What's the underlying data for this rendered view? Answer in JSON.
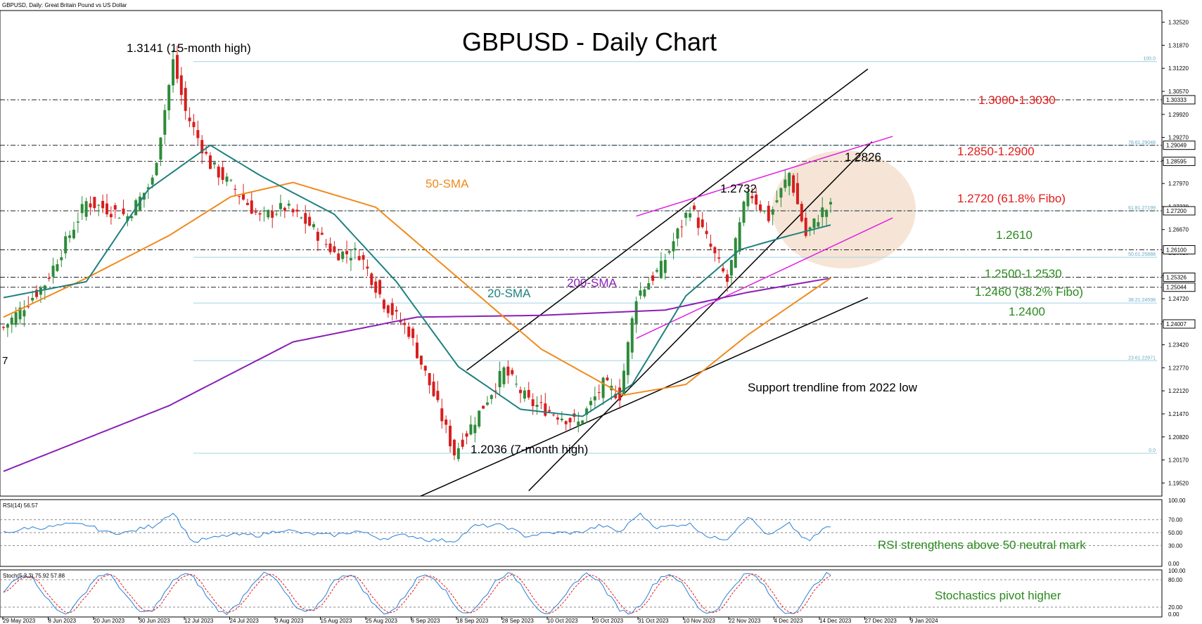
{
  "header": {
    "symbol_line": "GBPUSD, Daily:  Great Britain Pound vs US Dollar",
    "title": "GBPUSD - Daily Chart",
    "left_edge_label": "7"
  },
  "colors": {
    "bull": "#2e8b3a",
    "bear": "#d81e1e",
    "sma20": "#1f8080",
    "sma50": "#f08a1c",
    "sma200": "#8a1fb5",
    "channel": "#000000",
    "wedge": "#e020e0",
    "fib": "#9fd3e6",
    "red_text": "#e31b1b",
    "green_text": "#2a8a1e",
    "highlight": "#f3dcc8"
  },
  "annotations": {
    "high_label": "1.3141 (15-month high)",
    "low_label": "1.2036 (7-month high)",
    "p_1_2732": "1.2732",
    "p_1_2826": "1.2826",
    "sma50_label": "50-SMA",
    "sma20_label": "20-SMA",
    "sma200_label": "200-SMA",
    "trendline_label": "Support trendline from 2022 low",
    "r1": "1.3000-1.3030",
    "r2": "1.2850-1.2900",
    "r3": "1.2720 (61.8% Fibo)",
    "s1": "1.2610",
    "s2": "1.2500-1.2530",
    "s3": "1.2460 (38.2% Fibo)",
    "s4": "1.2400",
    "rsi_note": "RSI strengthens above 50 neutral mark",
    "stoch_note": "Stochastics pivot higher"
  },
  "fib_levels": [
    {
      "label": "100.0",
      "price": 1.3141
    },
    {
      "label": "78.61.29048",
      "price": 1.29048
    },
    {
      "label": "61.81.27199",
      "price": 1.27199
    },
    {
      "label": "50.01.25888",
      "price": 1.25888
    },
    {
      "label": "38.21.24598",
      "price": 1.24598
    },
    {
      "label": "23.61.22971",
      "price": 1.22971
    },
    {
      "label": "0.0",
      "price": 1.2036
    }
  ],
  "price_axis": {
    "ticks": [
      "1.32520",
      "1.31870",
      "1.31220",
      "1.30570",
      "1.29920",
      "1.29270",
      "1.28620",
      "1.27970",
      "1.27320",
      "1.26670",
      "1.26020",
      "1.25370",
      "1.24720",
      "1.24070",
      "1.23420",
      "1.22770",
      "1.22120",
      "1.21470",
      "1.20820",
      "1.20170",
      "1.19520"
    ],
    "boxed": [
      "1.30333",
      "1.29049",
      "1.28595",
      "1.27200",
      "1.26100",
      "1.25326",
      "1.25044",
      "1.24007"
    ]
  },
  "time_axis": [
    "29 May 2023",
    "8 Jun 2023",
    "20 Jun 2023",
    "30 Jun 2023",
    "12 Jul 2023",
    "24 Jul 2023",
    "3 Aug 2023",
    "15 Aug 2023",
    "25 Aug 2023",
    "6 Sep 2023",
    "18 Sep 2023",
    "28 Sep 2023",
    "10 Oct 2023",
    "20 Oct 2023",
    "31 Oct 2023",
    "10 Nov 2023",
    "22 Nov 2023",
    "4 Dec 2023",
    "14 Dec 2023",
    "27 Dec 2023",
    "9 Jan 2024"
  ],
  "rsi": {
    "header": "RSI(14) 56.57",
    "ticks": [
      "100.00",
      "70.00",
      "50.00",
      "30.00",
      "0.00"
    ]
  },
  "stoch": {
    "header": "Stoch(5,3,3) 75.92 57.88",
    "ticks": [
      "100.00",
      "80.00",
      "20.00",
      "0.00"
    ]
  },
  "chart_data": {
    "type": "candlestick",
    "title": "GBPUSD - Daily Chart",
    "timeframe": "Daily",
    "x_start": "2023-05-29",
    "x_end": "2024-01-09",
    "ylim": [
      1.1915,
      1.3285
    ],
    "price_anchors": [
      {
        "x": 0,
        "y": 1.239
      },
      {
        "x": 10,
        "y": 1.2515
      },
      {
        "x": 20,
        "y": 1.2745
      },
      {
        "x": 30,
        "y": 1.2705
      },
      {
        "x": 36,
        "y": 1.2805
      },
      {
        "x": 41,
        "y": 1.3141
      },
      {
        "x": 44,
        "y": 1.3
      },
      {
        "x": 50,
        "y": 1.285
      },
      {
        "x": 56,
        "y": 1.278
      },
      {
        "x": 62,
        "y": 1.27
      },
      {
        "x": 68,
        "y": 1.273
      },
      {
        "x": 74,
        "y": 1.268
      },
      {
        "x": 80,
        "y": 1.26
      },
      {
        "x": 86,
        "y": 1.26
      },
      {
        "x": 92,
        "y": 1.246
      },
      {
        "x": 98,
        "y": 1.238
      },
      {
        "x": 104,
        "y": 1.22
      },
      {
        "x": 109,
        "y": 1.2036
      },
      {
        "x": 115,
        "y": 1.215
      },
      {
        "x": 121,
        "y": 1.227
      },
      {
        "x": 127,
        "y": 1.218
      },
      {
        "x": 133,
        "y": 1.215
      },
      {
        "x": 139,
        "y": 1.212
      },
      {
        "x": 145,
        "y": 1.223
      },
      {
        "x": 149,
        "y": 1.22
      },
      {
        "x": 153,
        "y": 1.248
      },
      {
        "x": 159,
        "y": 1.256
      },
      {
        "x": 166,
        "y": 1.2732
      },
      {
        "x": 170,
        "y": 1.264
      },
      {
        "x": 175,
        "y": 1.252
      },
      {
        "x": 180,
        "y": 1.278
      },
      {
        "x": 185,
        "y": 1.27
      },
      {
        "x": 190,
        "y": 1.2826
      },
      {
        "x": 194,
        "y": 1.265
      },
      {
        "x": 198,
        "y": 1.272
      },
      {
        "x": 200,
        "y": 1.273
      }
    ],
    "sma20_anchors": [
      {
        "x": 0,
        "y": 1.2475
      },
      {
        "x": 20,
        "y": 1.252
      },
      {
        "x": 35,
        "y": 1.278
      },
      {
        "x": 50,
        "y": 1.2905
      },
      {
        "x": 62,
        "y": 1.282
      },
      {
        "x": 80,
        "y": 1.271
      },
      {
        "x": 95,
        "y": 1.252
      },
      {
        "x": 110,
        "y": 1.228
      },
      {
        "x": 125,
        "y": 1.216
      },
      {
        "x": 140,
        "y": 1.214
      },
      {
        "x": 152,
        "y": 1.223
      },
      {
        "x": 165,
        "y": 1.248
      },
      {
        "x": 178,
        "y": 1.261
      },
      {
        "x": 190,
        "y": 1.265
      },
      {
        "x": 200,
        "y": 1.268
      }
    ],
    "sma50_anchors": [
      {
        "x": 0,
        "y": 1.242
      },
      {
        "x": 20,
        "y": 1.253
      },
      {
        "x": 40,
        "y": 1.265
      },
      {
        "x": 55,
        "y": 1.276
      },
      {
        "x": 70,
        "y": 1.28
      },
      {
        "x": 90,
        "y": 1.273
      },
      {
        "x": 110,
        "y": 1.253
      },
      {
        "x": 130,
        "y": 1.233
      },
      {
        "x": 150,
        "y": 1.22
      },
      {
        "x": 165,
        "y": 1.223
      },
      {
        "x": 180,
        "y": 1.237
      },
      {
        "x": 200,
        "y": 1.253
      }
    ],
    "sma200_anchors": [
      {
        "x": 0,
        "y": 1.1985
      },
      {
        "x": 40,
        "y": 1.217
      },
      {
        "x": 70,
        "y": 1.235
      },
      {
        "x": 100,
        "y": 1.242
      },
      {
        "x": 130,
        "y": 1.2425
      },
      {
        "x": 160,
        "y": 1.244
      },
      {
        "x": 180,
        "y": 1.249
      },
      {
        "x": 200,
        "y": 1.253
      }
    ]
  }
}
